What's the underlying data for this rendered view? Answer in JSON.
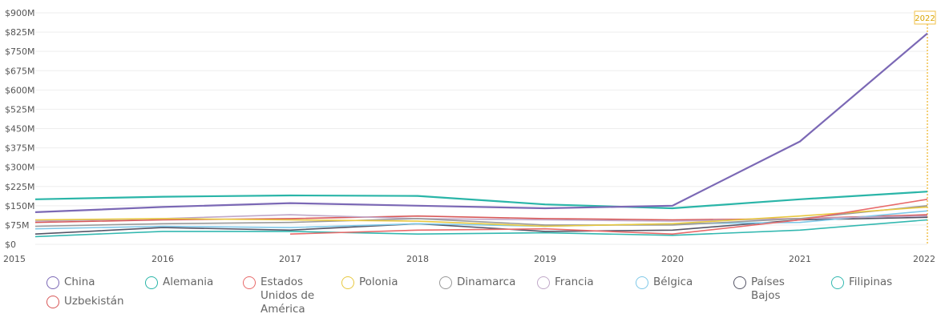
{
  "chart_data": {
    "type": "line",
    "title": "",
    "xlabel": "",
    "ylabel": "",
    "x": [
      "2015",
      "2016",
      "2017",
      "2018",
      "2019",
      "2020",
      "2021",
      "2022"
    ],
    "ylim": [
      0,
      900
    ],
    "yticks": [
      "$0",
      "$75M",
      "$150M",
      "$225M",
      "$300M",
      "$375M",
      "$450M",
      "$525M",
      "$600M",
      "$675M",
      "$750M",
      "$825M",
      "$900M"
    ],
    "grid": true,
    "highlight_label": "2022",
    "legend_position": "bottom",
    "series": [
      {
        "name": "China",
        "color": "#7b68b5",
        "values": [
          125,
          145,
          160,
          150,
          140,
          150,
          400,
          820
        ]
      },
      {
        "name": "Alemania",
        "color": "#2ab5a8",
        "values": [
          175,
          185,
          190,
          188,
          155,
          140,
          175,
          205
        ]
      },
      {
        "name": "Estados Unidos de América",
        "color": "#e86a6a",
        "values": [
          null,
          null,
          40,
          55,
          60,
          40,
          95,
          175
        ]
      },
      {
        "name": "Polonia",
        "color": "#e8c840",
        "values": [
          95,
          100,
          95,
          90,
          70,
          80,
          110,
          145
        ]
      },
      {
        "name": "Dinamarca",
        "color": "#999999",
        "values": [
          70,
          80,
          85,
          100,
          75,
          75,
          100,
          150
        ]
      },
      {
        "name": "Francia",
        "color": "#c0a8c8",
        "values": [
          90,
          100,
          115,
          100,
          95,
          90,
          100,
          110
        ]
      },
      {
        "name": "Bélgica",
        "color": "#7fc8e8",
        "values": [
          60,
          70,
          65,
          80,
          70,
          80,
          85,
          130
        ]
      },
      {
        "name": "Países Bajos",
        "color": "#555566",
        "values": [
          40,
          65,
          55,
          80,
          50,
          55,
          95,
          105
        ]
      },
      {
        "name": "Filipinas",
        "color": "#33b8b0",
        "values": [
          30,
          50,
          50,
          40,
          45,
          35,
          55,
          95
        ]
      },
      {
        "name": "Uzbekistán",
        "color": "#d85858",
        "values": [
          85,
          95,
          100,
          110,
          100,
          95,
          100,
          115
        ]
      }
    ]
  }
}
